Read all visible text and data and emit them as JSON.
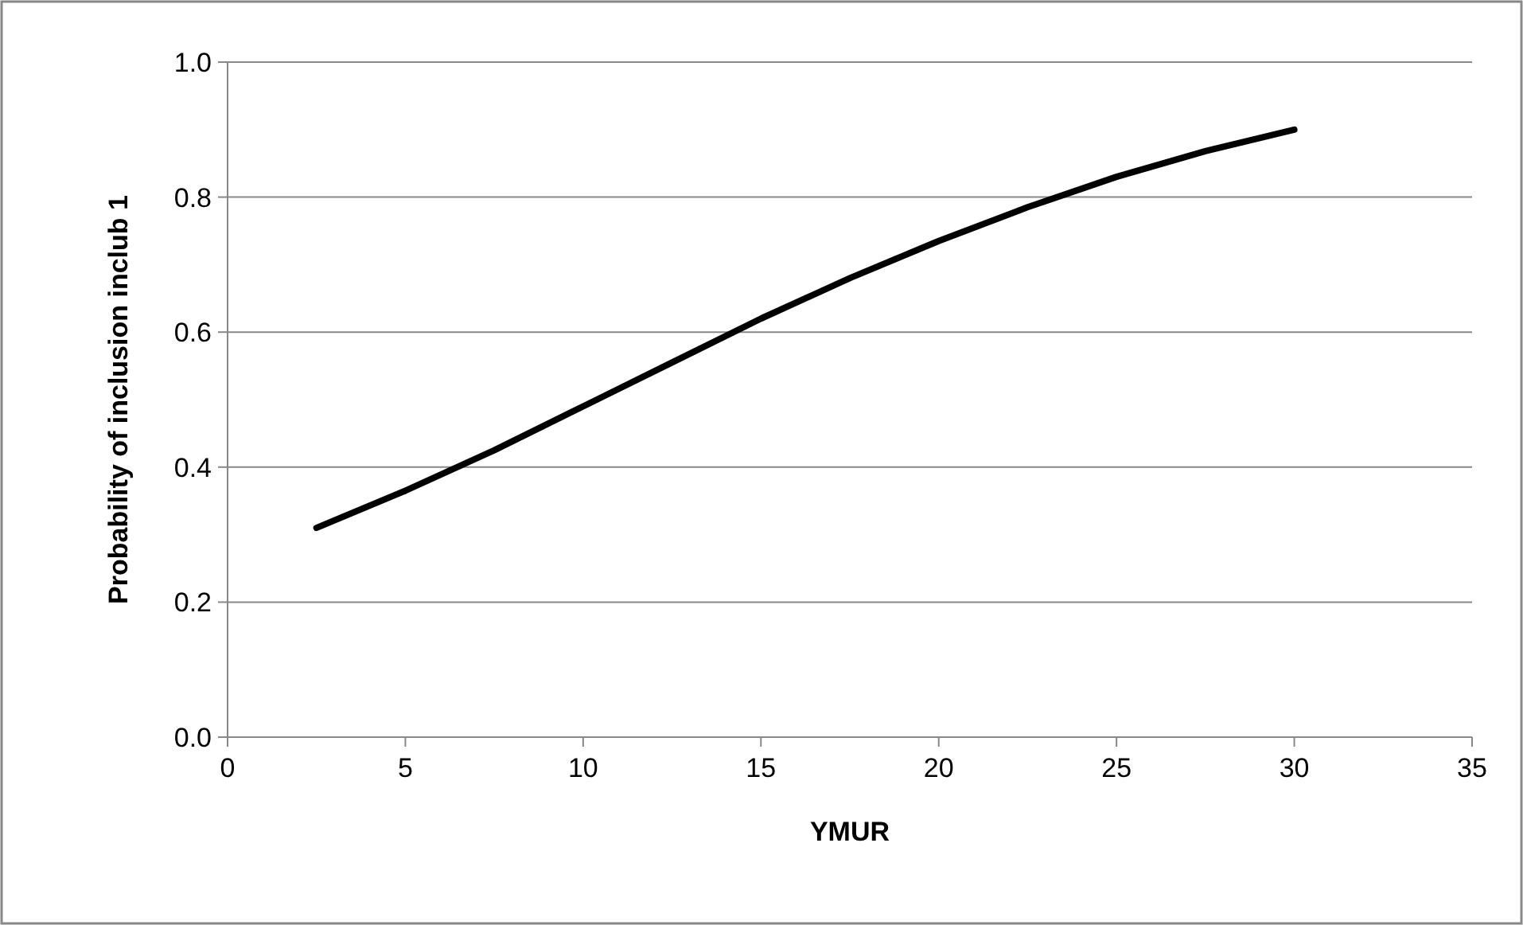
{
  "chart_data": {
    "type": "line",
    "xlabel": "YMUR",
    "ylabel": "Probability of inclusion inclub 1",
    "x": [
      2.5,
      5,
      7.5,
      10,
      12.5,
      15,
      17.5,
      20,
      22.5,
      25,
      27.5,
      30
    ],
    "series": [
      {
        "color": "#000000",
        "values": [
          0.31,
          0.365,
          0.425,
          0.49,
          0.555,
          0.62,
          0.68,
          0.735,
          0.785,
          0.83,
          0.868,
          0.9
        ]
      }
    ],
    "xlim": [
      0,
      35
    ],
    "xticks": [
      0,
      5,
      10,
      15,
      20,
      25,
      30,
      35
    ],
    "ylim": [
      0,
      1
    ],
    "yticks": [
      {
        "value": 0,
        "label": "0.0"
      },
      {
        "value": 0.2,
        "label": "0.2"
      },
      {
        "value": 0.4,
        "label": "0.4"
      },
      {
        "value": 0.6,
        "label": "0.6"
      },
      {
        "value": 0.8,
        "label": "0.8"
      },
      {
        "value": 1,
        "label": "1.0"
      }
    ],
    "grid": "y"
  }
}
